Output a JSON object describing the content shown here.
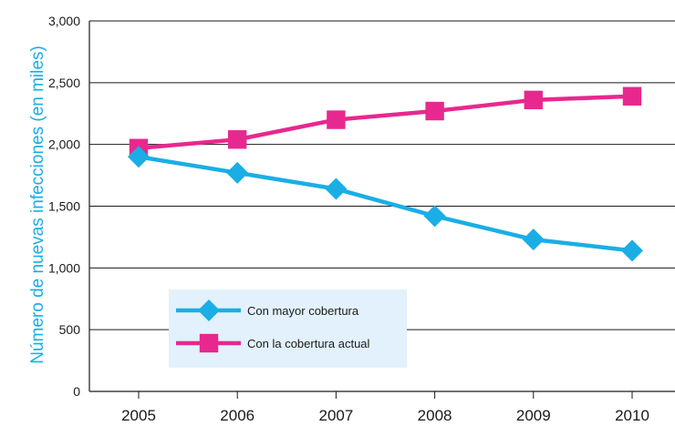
{
  "chart_data": {
    "type": "line",
    "title": "",
    "xlabel": "",
    "ylabel": "Número de nuevas infecciones (en miles)",
    "x": [
      "2005",
      "2006",
      "2007",
      "2008",
      "2009",
      "2010"
    ],
    "ylim": [
      0,
      3000
    ],
    "yticks": [
      0,
      500,
      1000,
      1500,
      2000,
      2500,
      3000
    ],
    "ytick_labels": [
      "0",
      "500",
      "1,000",
      "1,500",
      "2,000",
      "2,500",
      "3,000"
    ],
    "grid": false,
    "legend_position": "bottom-left",
    "series": [
      {
        "name": "Con mayor cobertura",
        "color": "#1aaee5",
        "marker": "diamond",
        "values": [
          1900,
          1770,
          1640,
          1420,
          1230,
          1140
        ]
      },
      {
        "name": "Con la cobertura actual",
        "color": "#e8288e",
        "marker": "square",
        "values": [
          1970,
          2040,
          2200,
          2270,
          2360,
          2390
        ]
      }
    ]
  },
  "colors": {
    "axis": "#1a1a1a",
    "legend_bg": "#e2f1fb",
    "ylabel": "#1aaee5"
  }
}
